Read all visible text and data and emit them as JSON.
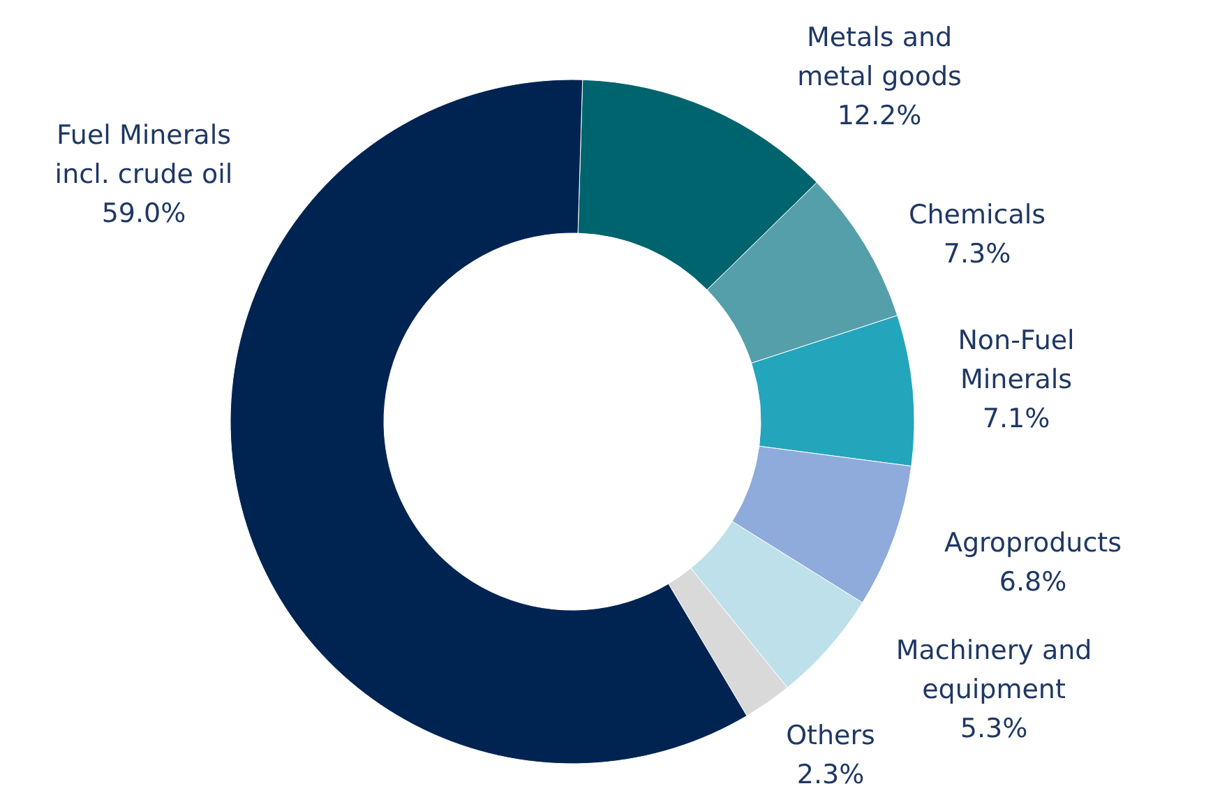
{
  "chart_data": {
    "type": "donut",
    "categories": [
      "Metals and\nmetal goods",
      "Chemicals",
      "Non-Fuel\nMinerals",
      "Agroproducts",
      "Machinery and\nequipment",
      "Others",
      "Fuel Minerals\nincl. crude oil"
    ],
    "values": [
      12.2,
      7.3,
      7.1,
      6.8,
      5.3,
      2.3,
      59.0
    ],
    "colors": [
      "#00646e",
      "#559faa",
      "#23a5bc",
      "#8eabdc",
      "#bde0ea",
      "#d9d9d9",
      "#002452"
    ],
    "value_labels": [
      "12.2%",
      "7.3%",
      "7.1%",
      "6.8%",
      "5.3%",
      "2.3%",
      "59.0%"
    ]
  }
}
